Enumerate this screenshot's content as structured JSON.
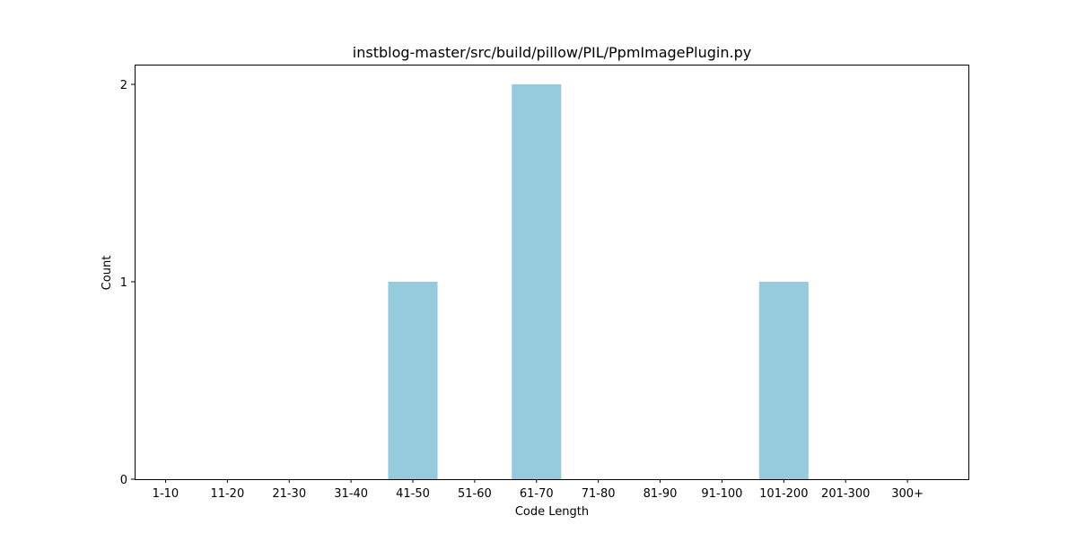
{
  "chart_data": {
    "type": "bar",
    "title": "instblog-master/src/build/pillow/PIL/PpmImagePlugin.py",
    "xlabel": "Code Length",
    "ylabel": "Count",
    "categories": [
      "1-10",
      "11-20",
      "21-30",
      "31-40",
      "41-50",
      "51-60",
      "61-70",
      "71-80",
      "81-90",
      "91-100",
      "101-200",
      "201-300",
      "300+"
    ],
    "values": [
      0,
      0,
      0,
      0,
      1,
      0,
      2,
      0,
      0,
      0,
      1,
      0,
      0
    ],
    "ylim": [
      0,
      2.1
    ],
    "yticks": [
      0,
      1,
      2
    ],
    "grid": false,
    "bar_color": "#96cadd"
  }
}
